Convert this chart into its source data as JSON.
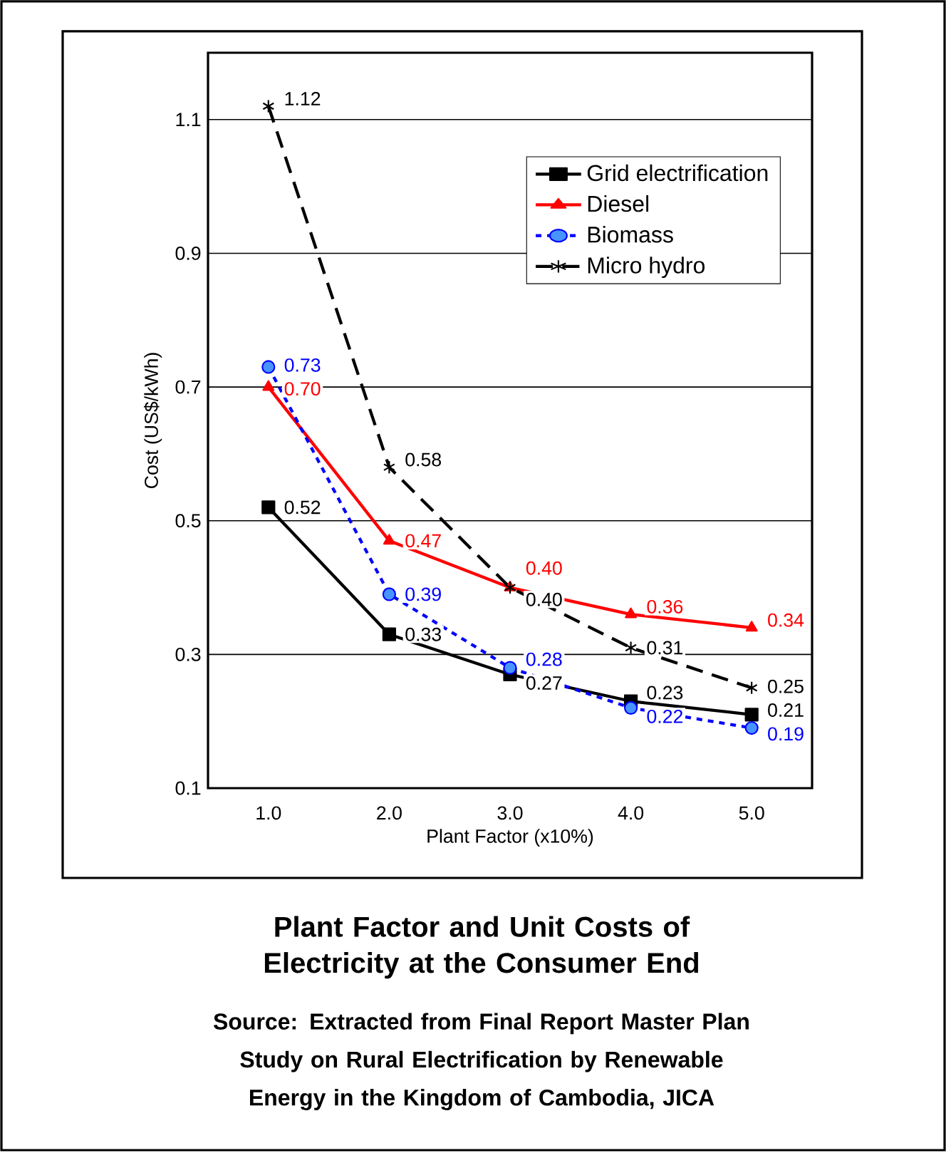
{
  "chart_data": {
    "type": "line",
    "title": "Plant Factor and Unit Costs of Electricity at the Consumer End",
    "annotations": [
      "Source: Extracted from Final Report Master Plan Study on Rural Electrification by Renewable Energy in the Kingdom of Cambodia, JICA"
    ],
    "xlabel": "Plant Factor (x10%)",
    "ylabel": "Cost (US$/kWh)",
    "x": [
      1,
      2,
      3,
      4,
      5
    ],
    "series": [
      {
        "name": "Grid electrification",
        "color": "#000000",
        "marker": "square",
        "line_style": "solid",
        "values": [
          0.52,
          0.33,
          0.27,
          0.23,
          0.21
        ],
        "value_labels": [
          "0.52",
          "0.33",
          "0.27",
          "0.23",
          "0.21"
        ]
      },
      {
        "name": "Diesel",
        "color": "#ff0000",
        "marker": "triangle",
        "line_style": "solid",
        "values": [
          0.7,
          0.47,
          0.4,
          0.36,
          0.34
        ],
        "value_labels": [
          "0.70",
          "0.47",
          "0.40",
          "0.36",
          "0.34"
        ]
      },
      {
        "name": "Biomass",
        "color": "#0000ff",
        "marker": "circle",
        "line_style": "dotted",
        "values": [
          0.73,
          0.39,
          0.28,
          0.22,
          0.19
        ],
        "value_labels": [
          "0.73",
          "0.39",
          "0.28",
          "0.22",
          "0.19"
        ]
      },
      {
        "name": "Micro hydro",
        "color": "#000000",
        "marker": "cross",
        "line_style": "dashed",
        "values": [
          1.12,
          0.58,
          0.4,
          0.31,
          0.25
        ],
        "value_labels": [
          "1.12",
          "0.58",
          "0.40",
          "0.31",
          "0.25"
        ]
      }
    ],
    "xlim": [
      0.5,
      5.5
    ],
    "xticks": [
      {
        "value": 1,
        "label": "1.0"
      },
      {
        "value": 2,
        "label": "2.0"
      },
      {
        "value": 3,
        "label": "3.0"
      },
      {
        "value": 4,
        "label": "4.0"
      },
      {
        "value": 5,
        "label": "5.0"
      }
    ],
    "ylim": [
      0.1,
      1.2
    ],
    "yticks": [
      0.1,
      0.3,
      0.5,
      0.7,
      0.9,
      1.1
    ],
    "grid": "y",
    "legend": "top right"
  }
}
